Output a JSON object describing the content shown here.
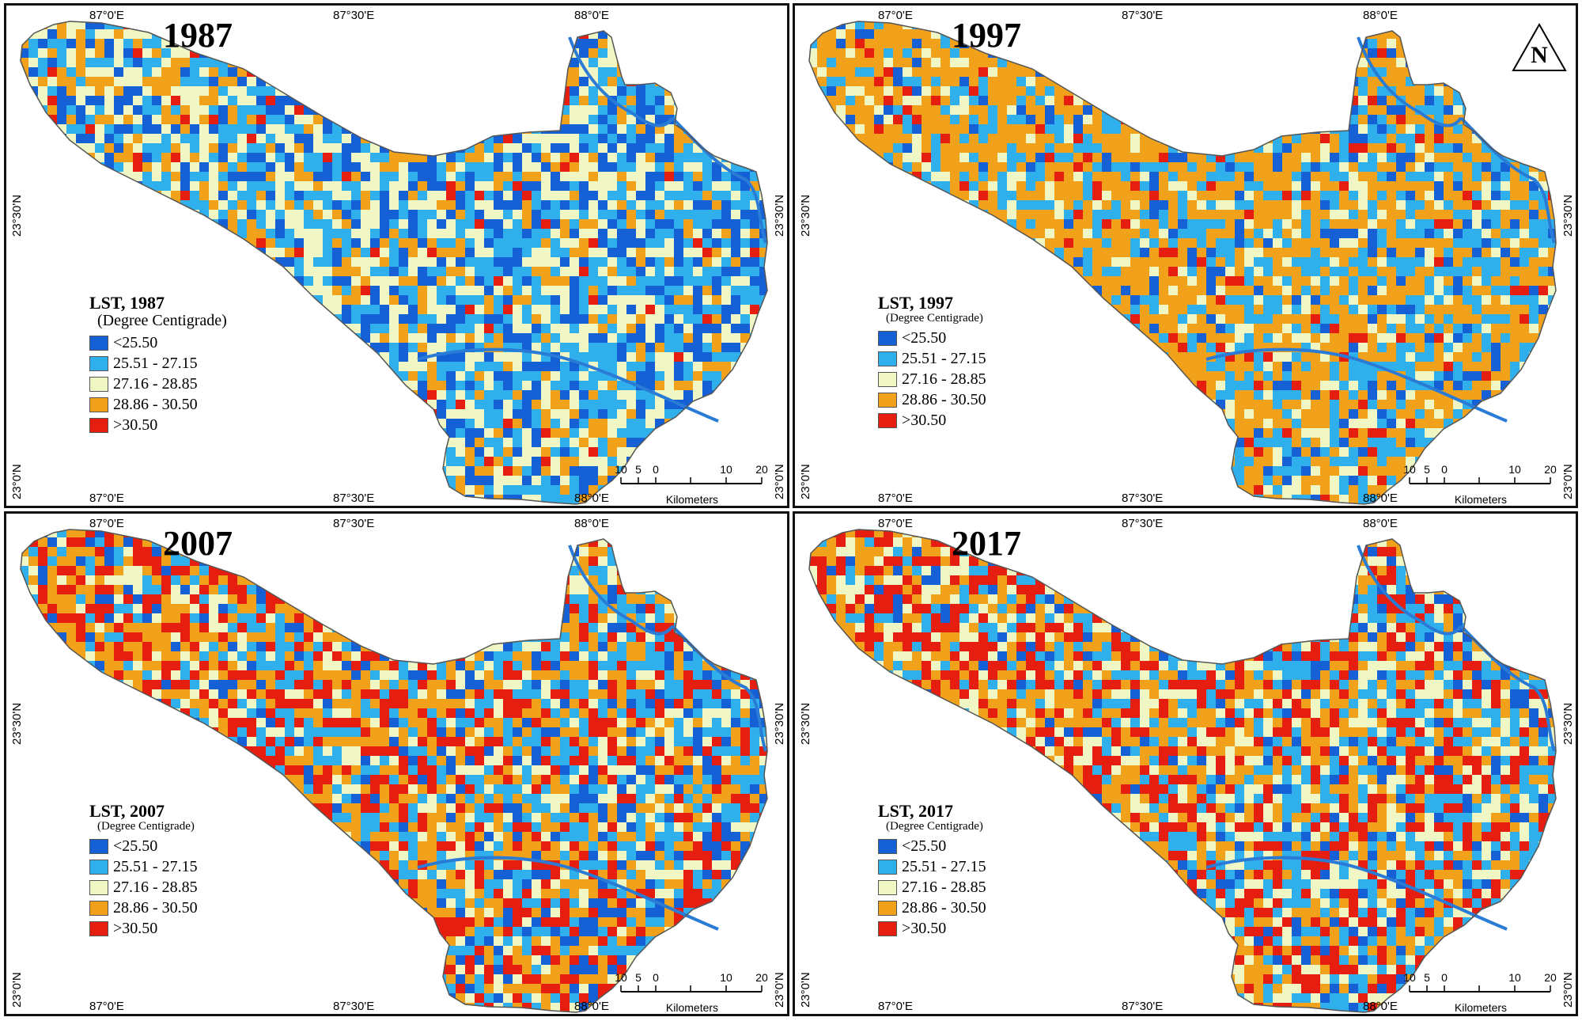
{
  "colors": {
    "c1": "#1560d4",
    "c2": "#2fb0ec",
    "c3": "#f0f6c4",
    "c4": "#f2a21a",
    "c5": "#e61e10",
    "river": "#2a7bd6",
    "border": "#555555"
  },
  "legend_ranges": [
    "<25.50",
    "25.51 - 27.15",
    "27.16 - 28.85",
    "28.86 - 30.50",
    ">30.50"
  ],
  "coords": {
    "lon_87_0": "87°0'E",
    "lon_87_30": "87°30'E",
    "lon_88_0": "88°0'E",
    "lat_23_30": "23°30'N",
    "lat_23_0": "23°0'N"
  },
  "scale": {
    "ticks": [
      "10",
      "5",
      "0",
      "10",
      "20"
    ],
    "unit": "Kilometers"
  },
  "north_arrow": {
    "letter": "N",
    "icon": "north-arrow-icon"
  },
  "panels": [
    {
      "year": "1987",
      "legend_title": "LST, 1987",
      "legend_subtitle": "(Degree Centigrade)",
      "class_share": [
        0.17,
        0.26,
        0.38,
        0.16,
        0.03
      ]
    },
    {
      "year": "1997",
      "legend_title": "LST, 1997",
      "legend_subtitle": "(Degree Centigrade)",
      "class_share": [
        0.07,
        0.24,
        0.17,
        0.48,
        0.04
      ]
    },
    {
      "year": "2007",
      "legend_title": "LST, 2007",
      "legend_subtitle": "(Degree Centigrade)",
      "class_share": [
        0.1,
        0.21,
        0.22,
        0.27,
        0.2
      ]
    },
    {
      "year": "2017",
      "legend_title": "LST, 2017",
      "legend_subtitle": "(Degree Centigrade)",
      "class_share": [
        0.07,
        0.19,
        0.26,
        0.25,
        0.23
      ]
    }
  ]
}
